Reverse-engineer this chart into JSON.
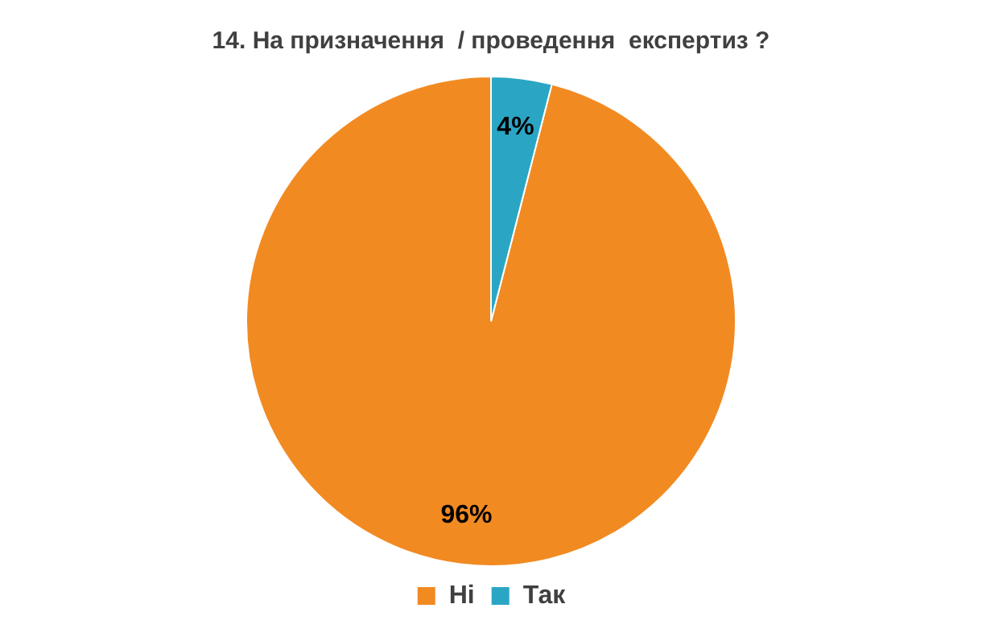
{
  "chart_data": {
    "type": "pie",
    "title": "14. На призначення  / проведення  експертиз ?",
    "categories": [
      "Ні",
      "Так"
    ],
    "values": [
      96,
      4
    ],
    "colors": [
      "#f28a22",
      "#2aa6c4"
    ],
    "value_labels": [
      "96%",
      "4%"
    ],
    "legend": "bottom"
  }
}
